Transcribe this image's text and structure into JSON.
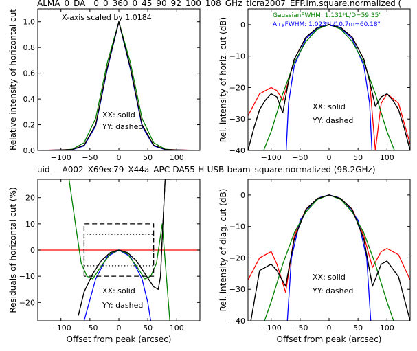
{
  "figure": {
    "title": "ALMA_0_DA__0_0_360_0_45_90_92_100_108_GHz_ticra2007_EFP.im.square.normalized (",
    "subtitle": "uid___A002_X69ec79_X44a_APC-DA55-H-USB-beam_square.normalized (98.2GHz)",
    "subtitle_color": "#ff0000"
  },
  "chart_data": [
    {
      "id": "horizontal-cut",
      "type": "line",
      "ylabel": "Relative intensity of horizontal cut",
      "xlabel": "",
      "xlim": [
        -140,
        140
      ],
      "ylim": [
        0,
        1.1
      ],
      "xticks": [
        -100,
        -50,
        0,
        50,
        100
      ],
      "yticks": [
        0.0,
        0.2,
        0.4,
        0.6,
        0.8,
        1.0
      ],
      "annotations": [
        "X-axis scaled by 1.0184",
        "XX: solid",
        "YY: dashed"
      ],
      "series": [
        {
          "color": "#ff0000",
          "style": "solid",
          "x": [
            -140,
            -100,
            -80,
            -60,
            -40,
            -20,
            0,
            20,
            40,
            60,
            80,
            100,
            140
          ],
          "y": [
            0,
            0.005,
            0.008,
            0.04,
            0.2,
            0.64,
            1.0,
            0.64,
            0.2,
            0.04,
            0.008,
            0.005,
            0
          ]
        },
        {
          "color": "#0000ff",
          "style": "solid",
          "x": [
            -140,
            -100,
            -80,
            -60,
            -40,
            -20,
            0,
            20,
            40,
            60,
            80,
            100,
            140
          ],
          "y": [
            0,
            0.003,
            0.006,
            0.035,
            0.19,
            0.63,
            1.0,
            0.63,
            0.19,
            0.035,
            0.006,
            0.003,
            0
          ]
        },
        {
          "color": "#008000",
          "style": "solid",
          "x": [
            -140,
            -100,
            -80,
            -60,
            -40,
            -20,
            0,
            20,
            40,
            60,
            80,
            100,
            140
          ],
          "y": [
            0,
            0.002,
            0.01,
            0.06,
            0.25,
            0.68,
            1.0,
            0.68,
            0.25,
            0.06,
            0.01,
            0.002,
            0
          ]
        },
        {
          "color": "#000000",
          "style": "solid",
          "x": [
            -140,
            -100,
            -80,
            -60,
            -40,
            -20,
            0,
            20,
            40,
            60,
            80,
            100,
            140
          ],
          "y": [
            0,
            0.004,
            0.007,
            0.04,
            0.2,
            0.64,
            1.0,
            0.64,
            0.2,
            0.04,
            0.007,
            0.004,
            0
          ]
        }
      ]
    },
    {
      "id": "horizontal-cut-db",
      "type": "line",
      "ylabel": "Rel. intensity of horiz. cut (dB)",
      "xlabel": "",
      "xlim": [
        -140,
        140
      ],
      "ylim": [
        -40,
        5
      ],
      "xticks": [
        -100,
        -50,
        0,
        50,
        100
      ],
      "yticks": [
        0,
        -10,
        -20,
        -30,
        -40
      ],
      "legend": [
        "GaussianFWHM: 1.131*L/D=59.35\"",
        "AiryFWHM: 1.023*L/10.7m=60.18\""
      ],
      "legend_colors": [
        "#008000",
        "#0000ff"
      ],
      "annotations": [
        "XX: solid",
        "YY: dashed"
      ],
      "series": [
        {
          "color": "#ff0000",
          "style": "solid",
          "x": [
            -140,
            -120,
            -100,
            -90,
            -80,
            -70,
            -60,
            -40,
            -20,
            0,
            20,
            40,
            60,
            70,
            80,
            90,
            100,
            120,
            140
          ],
          "y": [
            -29,
            -22,
            -20,
            -21,
            -24,
            -18,
            -11,
            -4,
            -0.9,
            0,
            -0.9,
            -4,
            -11,
            -18,
            -40,
            -25,
            -22,
            -25,
            -38
          ]
        },
        {
          "color": "#0000ff",
          "style": "solid",
          "x": [
            -74,
            -70,
            -60,
            -40,
            -20,
            0,
            20,
            40,
            60,
            70,
            74
          ],
          "y": [
            -40,
            -25,
            -13,
            -4.5,
            -1.1,
            0,
            -1.1,
            -4.5,
            -13,
            -25,
            -40
          ]
        },
        {
          "color": "#008000",
          "style": "solid",
          "x": [
            -130,
            -100,
            -80,
            -60,
            -40,
            -20,
            0,
            20,
            40,
            60,
            80,
            100,
            130
          ],
          "y": [
            -48,
            -34,
            -22,
            -12,
            -5.4,
            -1.4,
            0,
            -1.4,
            -5.4,
            -12,
            -22,
            -34,
            -48
          ]
        },
        {
          "color": "#000000",
          "style": "solid",
          "x": [
            -140,
            -130,
            -120,
            -110,
            -100,
            -90,
            -80,
            -70,
            -60,
            -40,
            -20,
            0,
            20,
            40,
            60,
            70,
            80,
            90,
            100,
            110,
            120,
            130,
            140
          ],
          "y": [
            -40,
            -33,
            -27,
            -24,
            -22,
            -23,
            -28,
            -18,
            -11,
            -4,
            -0.9,
            0,
            -0.9,
            -4,
            -11,
            -18,
            -26,
            -23,
            -22,
            -24,
            -27,
            -33,
            -40
          ]
        },
        {
          "color": "#000000",
          "style": "dashed",
          "x": [
            -140,
            -130,
            -120,
            -110,
            -100,
            -90,
            -80,
            -70,
            -60,
            -40,
            -20,
            0,
            20,
            40,
            60,
            70,
            80,
            90,
            100,
            110,
            120,
            130,
            140
          ],
          "y": [
            -40,
            -33,
            -27,
            -24,
            -22,
            -23,
            -28,
            -18,
            -11,
            -4,
            -0.9,
            0,
            -0.9,
            -4,
            -11,
            -18,
            -26,
            -23,
            -22,
            -24,
            -27,
            -33,
            -40
          ]
        }
      ]
    },
    {
      "id": "residuals",
      "type": "line",
      "ylabel": "Residuals of horizontal cut (%)",
      "xlabel": "Offset from peak (arcsec)",
      "xlim": [
        -140,
        140
      ],
      "ylim": [
        -27,
        27
      ],
      "xticks": [
        -100,
        -50,
        0,
        50,
        100
      ],
      "yticks": [
        -20,
        -10,
        0,
        10,
        20
      ],
      "annotations": [
        "XX: solid",
        "YY: dashed"
      ],
      "series": [
        {
          "color": "#ff0000",
          "style": "solid",
          "x": [
            -140,
            140
          ],
          "y": [
            0,
            0
          ]
        },
        {
          "color": "#0000ff",
          "style": "solid",
          "x": [
            -60,
            -40,
            -20,
            0,
            20,
            40,
            50,
            55
          ],
          "y": [
            -27,
            -11,
            -2.5,
            0,
            -2.5,
            -11,
            -20,
            -27
          ]
        },
        {
          "color": "#008000",
          "style": "solid",
          "x": [
            -86,
            -75,
            -65,
            -55,
            -45,
            -30,
            -15,
            0,
            15,
            30,
            45,
            55,
            65,
            75,
            88
          ],
          "y": [
            27,
            10,
            -5,
            -10,
            -11,
            -6,
            -1.5,
            0,
            -1.5,
            -6,
            -11,
            -10,
            -5,
            10,
            -27
          ]
        },
        {
          "color": "#000000",
          "style": "solid",
          "x": [
            -70,
            -60,
            -45,
            -30,
            -15,
            0,
            15,
            30,
            45,
            60,
            68,
            72,
            75,
            80,
            90
          ],
          "y": [
            -25,
            -16,
            -9,
            -4,
            -1,
            0,
            -1,
            -4,
            -9,
            -14,
            -15,
            -10,
            5,
            27,
            27
          ]
        },
        {
          "color": "#000000",
          "style": "dashed",
          "x": [
            -70,
            -60,
            -45,
            -30,
            -15,
            0,
            15,
            30,
            45,
            60,
            68,
            72,
            75,
            80
          ],
          "y": [
            -25,
            -16,
            -9,
            -4,
            -1,
            0,
            -1,
            -4,
            -9,
            -14,
            -15,
            -10,
            5,
            27
          ]
        },
        {
          "color": "#000000",
          "style": "dashed",
          "x": [
            -60,
            -60,
            60,
            60,
            -60
          ],
          "y": [
            -10,
            10,
            10,
            -10,
            -10
          ]
        },
        {
          "color": "#000000",
          "style": "dotted",
          "x": [
            -60,
            -60,
            60,
            60,
            -60
          ],
          "y": [
            -6,
            6,
            6,
            -6,
            -6
          ]
        }
      ]
    },
    {
      "id": "diagonal-cut-db",
      "type": "line",
      "ylabel": "Rel. intensity of diag. cut (dB)",
      "xlabel": "Offset from peak (arcsec)",
      "xlim": [
        -140,
        140
      ],
      "ylim": [
        -40,
        5
      ],
      "xticks": [
        -100,
        -50,
        0,
        50,
        100
      ],
      "yticks": [
        0,
        -10,
        -20,
        -30,
        -40
      ],
      "annotations": [
        "XX: solid",
        "YY: dashed"
      ],
      "series": [
        {
          "color": "#ff0000",
          "style": "solid",
          "x": [
            -140,
            -120,
            -100,
            -90,
            -75,
            -60,
            -40,
            -20,
            0,
            20,
            40,
            60,
            75,
            90,
            100,
            120,
            140
          ],
          "y": [
            -27,
            -20,
            -18,
            -22,
            -31,
            -13,
            -4.5,
            -1.1,
            0,
            -1.1,
            -4.5,
            -13,
            -23,
            -18,
            -17,
            -19,
            -27
          ]
        },
        {
          "color": "#0000ff",
          "style": "solid",
          "x": [
            -72,
            -65,
            -50,
            -30,
            -15,
            0,
            15,
            30,
            50,
            65,
            72
          ],
          "y": [
            -40,
            -20,
            -8,
            -2.8,
            -0.7,
            0,
            -0.7,
            -2.8,
            -8,
            -20,
            -40
          ]
        },
        {
          "color": "#008000",
          "style": "solid",
          "x": [
            -140,
            -100,
            -80,
            -60,
            -40,
            -20,
            0,
            20,
            40,
            60,
            80,
            100,
            140
          ],
          "y": [
            -55,
            -34,
            -22,
            -12,
            -5.4,
            -1.4,
            0,
            -1.4,
            -5.4,
            -12,
            -22,
            -34,
            -55
          ]
        },
        {
          "color": "#000000",
          "style": "solid",
          "x": [
            -135,
            -120,
            -100,
            -90,
            -75,
            -60,
            -40,
            -20,
            0,
            20,
            40,
            60,
            75,
            90,
            100,
            120,
            140
          ],
          "y": [
            -40,
            -24,
            -22,
            -24,
            -29,
            -14,
            -4.6,
            -1.1,
            0,
            -1.1,
            -4.6,
            -14,
            -29,
            -22,
            -21,
            -26,
            -40
          ]
        },
        {
          "color": "#000000",
          "style": "dashed",
          "x": [
            -135,
            -120,
            -100,
            -90,
            -75,
            -60,
            -40,
            -20,
            0,
            20,
            40,
            60,
            75,
            90,
            100,
            120,
            140
          ],
          "y": [
            -40,
            -24,
            -22,
            -24,
            -29,
            -14,
            -4.6,
            -1.1,
            0,
            -1.1,
            -4.6,
            -14,
            -29,
            -22,
            -21,
            -26,
            -40
          ]
        }
      ]
    }
  ]
}
